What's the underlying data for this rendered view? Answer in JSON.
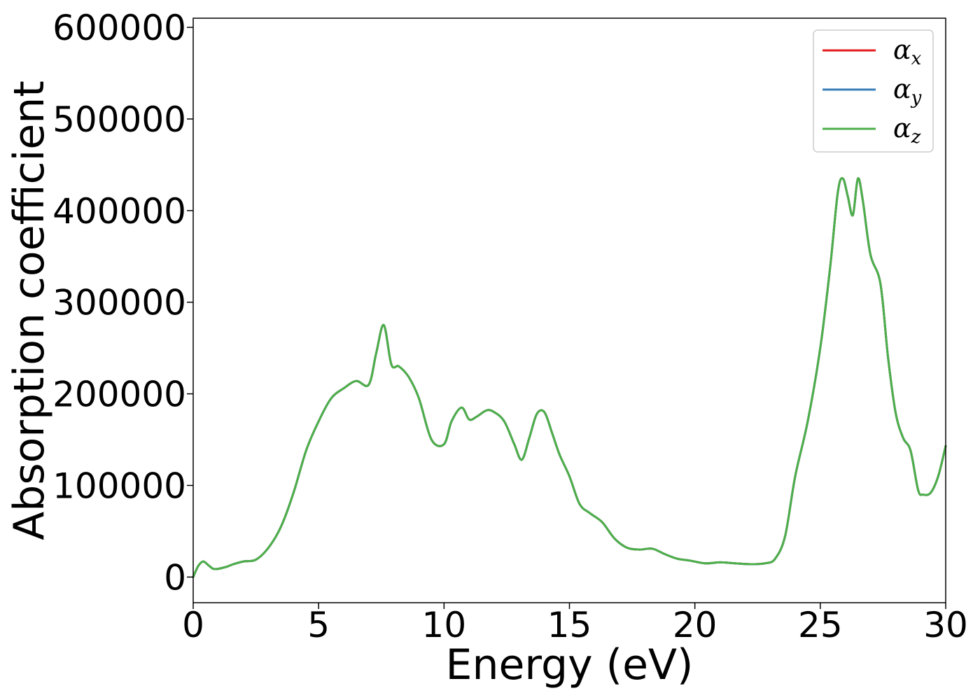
{
  "chart_data": {
    "type": "line",
    "xlabel": "Energy (eV)",
    "ylabel": "Absorption coefficient",
    "xlim": [
      0,
      30
    ],
    "ylim": [
      -28000,
      610000
    ],
    "xticks": [
      0,
      5,
      10,
      15,
      20,
      25,
      30
    ],
    "xtick_labels": [
      "0",
      "5",
      "10",
      "15",
      "20",
      "25",
      "30"
    ],
    "yticks": [
      0,
      100000,
      200000,
      300000,
      400000,
      500000,
      600000
    ],
    "ytick_labels": [
      "0",
      "100000",
      "200000",
      "300000",
      "400000",
      "500000",
      "600000"
    ],
    "grid": false,
    "legend_position": "top-right",
    "x": [
      0,
      0.2,
      0.4,
      0.6,
      0.8,
      1.0,
      1.3,
      1.6,
      2.0,
      2.5,
      3.0,
      3.5,
      4.0,
      4.5,
      5.0,
      5.5,
      6.0,
      6.5,
      7.0,
      7.3,
      7.6,
      7.9,
      8.2,
      8.6,
      9.0,
      9.5,
      10.0,
      10.3,
      10.7,
      11.0,
      11.3,
      11.7,
      12.0,
      12.4,
      12.8,
      13.1,
      13.4,
      13.7,
      14.0,
      14.3,
      14.6,
      15.0,
      15.4,
      15.8,
      16.3,
      16.8,
      17.3,
      17.8,
      18.3,
      18.8,
      19.3,
      19.8,
      20.4,
      21.0,
      21.6,
      22.2,
      22.8,
      23.2,
      23.6,
      24.0,
      24.5,
      25.0,
      25.4,
      25.7,
      25.9,
      26.1,
      26.3,
      26.5,
      26.7,
      27.0,
      27.4,
      27.7,
      28.0,
      28.3,
      28.6,
      28.9,
      29.1,
      29.4,
      29.7,
      30.0
    ],
    "series": [
      {
        "name": "α_x",
        "color": "#e41a1c",
        "values": [
          0,
          12000,
          17000,
          13000,
          9000,
          9000,
          11000,
          14000,
          17000,
          19000,
          32000,
          55000,
          92000,
          138000,
          170000,
          195000,
          206000,
          214000,
          210000,
          245000,
          275000,
          232000,
          230000,
          218000,
          195000,
          150000,
          145000,
          170000,
          185000,
          172000,
          175000,
          182000,
          180000,
          170000,
          145000,
          128000,
          152000,
          178000,
          180000,
          158000,
          134000,
          110000,
          80000,
          70000,
          60000,
          42000,
          32000,
          30000,
          31000,
          25000,
          20000,
          18000,
          15000,
          16000,
          15000,
          14000,
          15000,
          20000,
          45000,
          110000,
          170000,
          250000,
          340000,
          420000,
          435000,
          415000,
          395000,
          435000,
          410000,
          352000,
          320000,
          240000,
          180000,
          152000,
          138000,
          95000,
          90000,
          92000,
          110000,
          143000
        ]
      },
      {
        "name": "α_y",
        "color": "#377eb8",
        "values": [
          0,
          12000,
          17000,
          13000,
          9000,
          9000,
          11000,
          14000,
          17000,
          19000,
          32000,
          55000,
          92000,
          138000,
          170000,
          195000,
          206000,
          214000,
          210000,
          245000,
          275000,
          232000,
          230000,
          218000,
          195000,
          150000,
          145000,
          170000,
          185000,
          172000,
          175000,
          182000,
          180000,
          170000,
          145000,
          128000,
          152000,
          178000,
          180000,
          158000,
          134000,
          110000,
          80000,
          70000,
          60000,
          42000,
          32000,
          30000,
          31000,
          25000,
          20000,
          18000,
          15000,
          16000,
          15000,
          14000,
          15000,
          20000,
          45000,
          110000,
          170000,
          250000,
          340000,
          420000,
          435000,
          415000,
          395000,
          435000,
          410000,
          352000,
          320000,
          240000,
          180000,
          152000,
          138000,
          95000,
          90000,
          92000,
          110000,
          143000
        ]
      },
      {
        "name": "α_z",
        "color": "#4daf4a",
        "values": [
          0,
          12000,
          17000,
          13000,
          9000,
          9000,
          11000,
          14000,
          17000,
          19000,
          32000,
          55000,
          92000,
          138000,
          170000,
          195000,
          206000,
          214000,
          210000,
          245000,
          275000,
          232000,
          230000,
          218000,
          195000,
          150000,
          145000,
          170000,
          185000,
          172000,
          175000,
          182000,
          180000,
          170000,
          145000,
          128000,
          152000,
          178000,
          180000,
          158000,
          134000,
          110000,
          80000,
          70000,
          60000,
          42000,
          32000,
          30000,
          31000,
          25000,
          20000,
          18000,
          15000,
          16000,
          15000,
          14000,
          15000,
          20000,
          45000,
          110000,
          170000,
          250000,
          340000,
          420000,
          435000,
          415000,
          395000,
          435000,
          410000,
          352000,
          320000,
          240000,
          180000,
          152000,
          138000,
          95000,
          90000,
          92000,
          110000,
          143000
        ]
      }
    ],
    "legend": [
      {
        "symbol": "α",
        "subscript": "x",
        "color": "#e41a1c"
      },
      {
        "symbol": "α",
        "subscript": "y",
        "color": "#377eb8"
      },
      {
        "symbol": "α",
        "subscript": "z",
        "color": "#4daf4a"
      }
    ]
  }
}
